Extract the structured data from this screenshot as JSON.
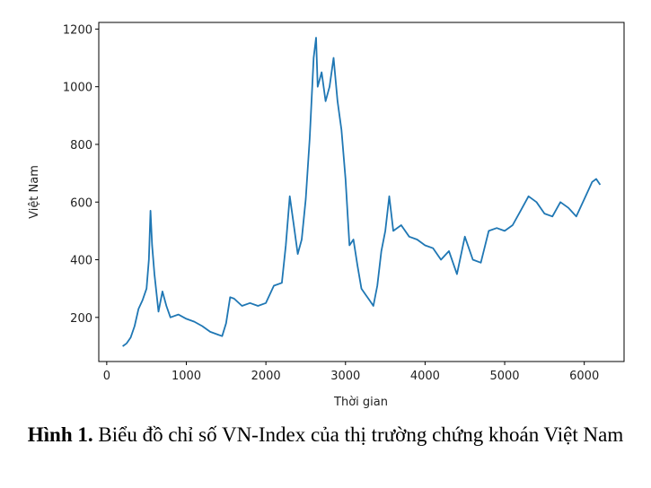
{
  "chart_data": {
    "type": "line",
    "xlabel": "Thời gian",
    "ylabel": "Việt Nam",
    "x": [
      200,
      250,
      300,
      350,
      400,
      450,
      500,
      530,
      550,
      570,
      600,
      650,
      700,
      750,
      800,
      900,
      1000,
      1100,
      1200,
      1300,
      1400,
      1450,
      1500,
      1550,
      1600,
      1700,
      1800,
      1900,
      2000,
      2100,
      2200,
      2250,
      2300,
      2350,
      2400,
      2450,
      2500,
      2550,
      2600,
      2630,
      2650,
      2700,
      2750,
      2800,
      2850,
      2900,
      2950,
      3000,
      3050,
      3100,
      3150,
      3200,
      3250,
      3300,
      3350,
      3400,
      3450,
      3500,
      3550,
      3600,
      3700,
      3800,
      3900,
      4000,
      4100,
      4200,
      4300,
      4400,
      4500,
      4600,
      4700,
      4800,
      4900,
      5000,
      5100,
      5200,
      5300,
      5400,
      5500,
      5600,
      5700,
      5800,
      5900,
      6000,
      6100,
      6150,
      6200
    ],
    "values": [
      100,
      110,
      130,
      170,
      230,
      260,
      300,
      400,
      570,
      450,
      350,
      220,
      290,
      240,
      200,
      210,
      195,
      185,
      170,
      150,
      140,
      135,
      180,
      270,
      265,
      240,
      250,
      240,
      250,
      310,
      320,
      450,
      620,
      520,
      420,
      470,
      610,
      820,
      1100,
      1170,
      1000,
      1050,
      950,
      1000,
      1100,
      950,
      850,
      680,
      450,
      470,
      380,
      300,
      280,
      260,
      240,
      310,
      430,
      500,
      620,
      500,
      520,
      480,
      470,
      450,
      440,
      400,
      430,
      350,
      480,
      400,
      390,
      500,
      510,
      500,
      520,
      570,
      620,
      600,
      560,
      550,
      600,
      580,
      550,
      610,
      670,
      680,
      660
    ],
    "color": "#1f77b4",
    "xlim": [
      -100,
      6500
    ],
    "xticks": [
      0,
      1000,
      2000,
      3000,
      4000,
      5000,
      6000
    ],
    "ylim": [
      47,
      1223
    ],
    "yticks": [
      200,
      400,
      600,
      800,
      1000,
      1200
    ]
  },
  "caption": {
    "label": "Hình 1.",
    "text": "Biểu đồ chỉ số VN-Index của thị trường chứng khoán Việt Nam"
  }
}
